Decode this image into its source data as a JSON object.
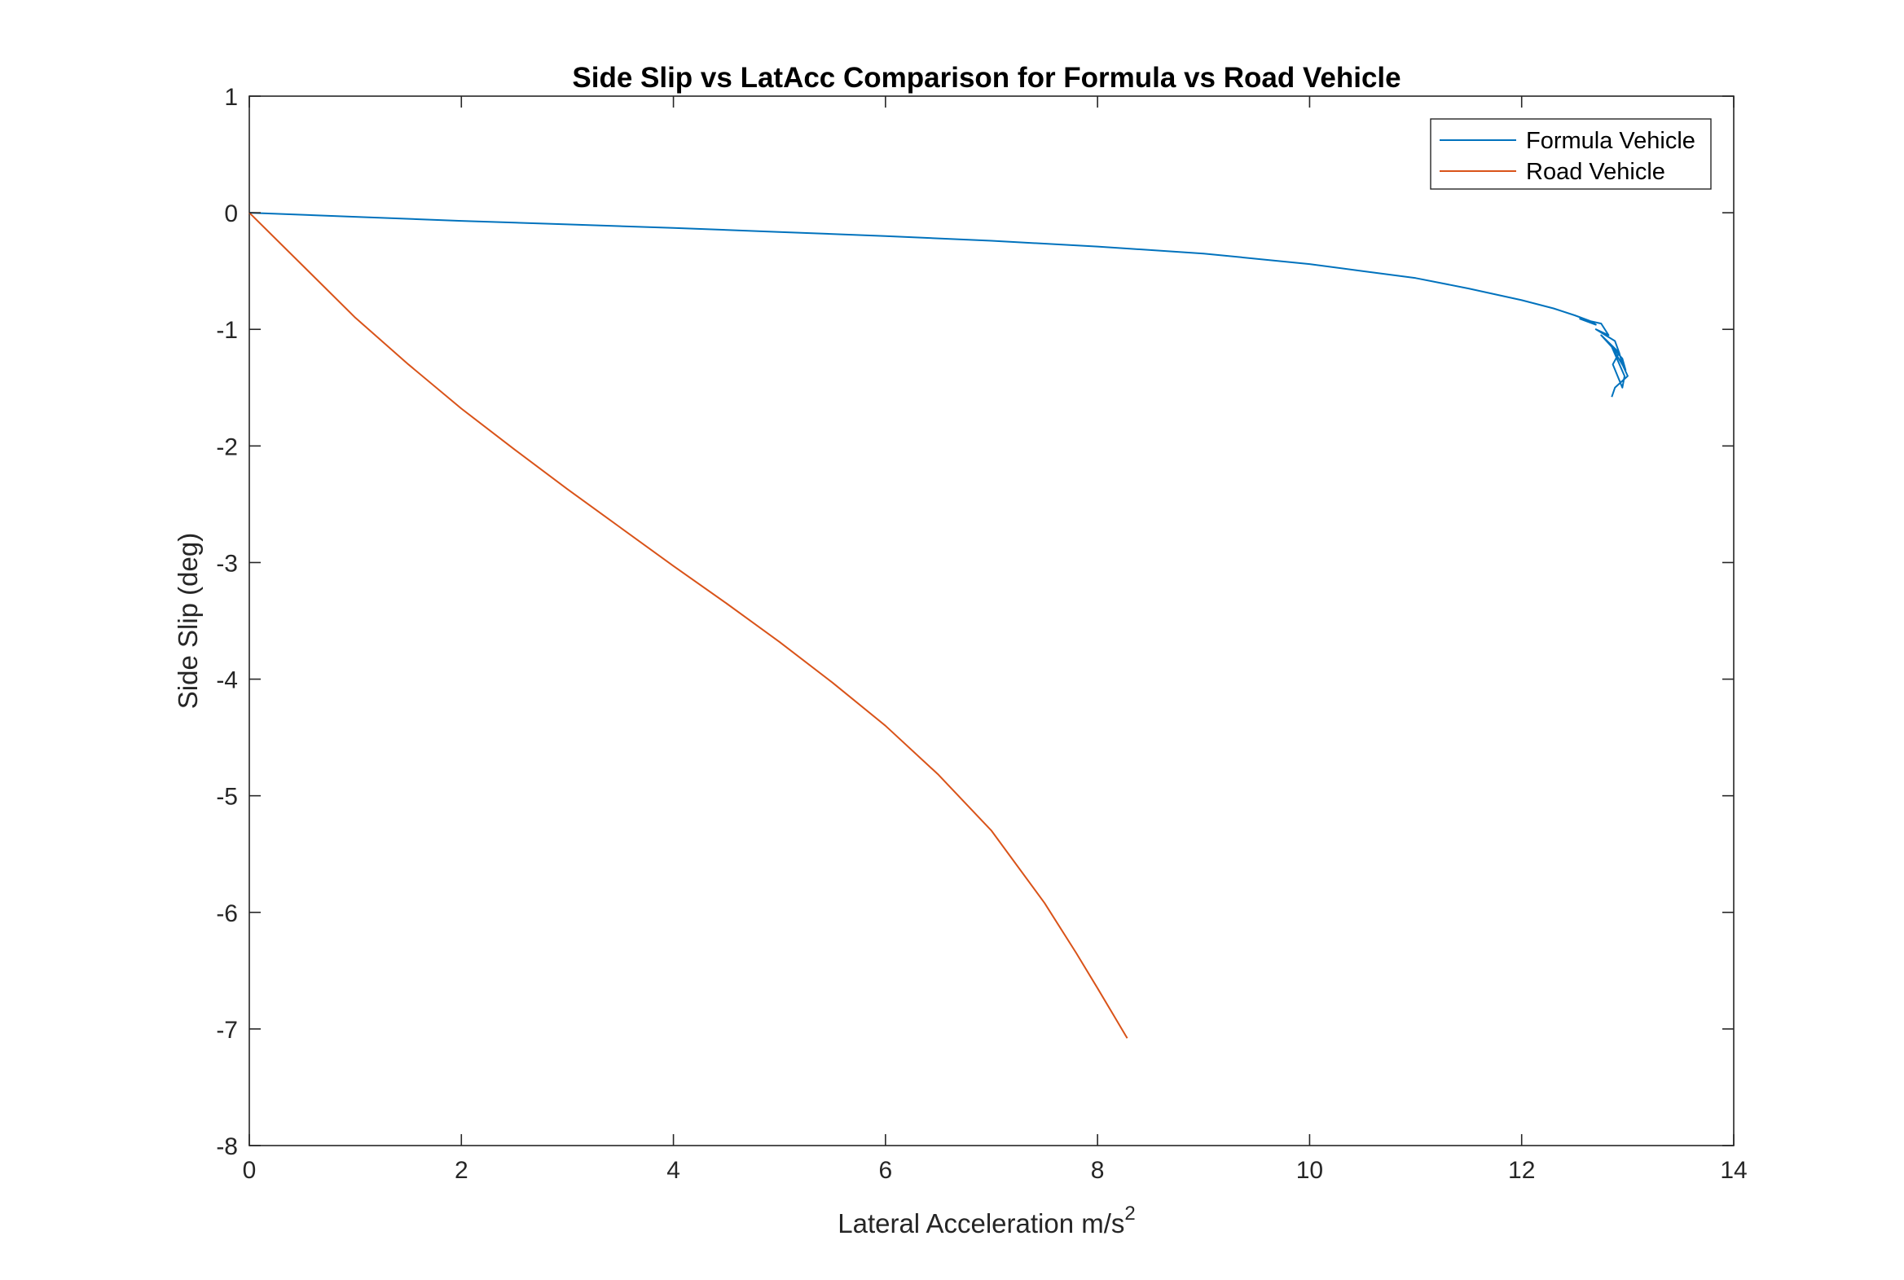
{
  "chart_data": {
    "type": "line",
    "title": "Side Slip vs LatAcc Comparison for Formula vs Road Vehicle",
    "xlabel": "Lateral Acceleration m/s",
    "xlabel_superscript": "2",
    "ylabel": "Side Slip (deg)",
    "xlim": [
      0,
      14
    ],
    "ylim": [
      -8,
      1
    ],
    "xticks": [
      "0",
      "2",
      "4",
      "6",
      "8",
      "10",
      "12",
      "14"
    ],
    "yticks": [
      "1",
      "0",
      "-1",
      "-2",
      "-3",
      "-4",
      "-5",
      "-6",
      "-7",
      "-8"
    ],
    "grid": false,
    "legend_position": "top-right",
    "series": [
      {
        "name": "Formula Vehicle",
        "color": "#0072BD",
        "x": [
          0,
          1,
          2,
          3,
          4,
          5,
          6,
          7,
          8,
          9,
          10,
          10.5,
          11,
          11.5,
          12,
          12.3,
          12.5,
          12.65,
          12.7,
          12.55,
          12.75,
          12.82,
          12.7,
          12.88,
          12.92,
          12.75,
          12.95,
          12.98,
          12.85,
          12.97,
          12.95,
          12.86,
          12.92,
          12.95,
          13.0,
          12.88,
          12.85
        ],
        "y": [
          0,
          -0.035,
          -0.07,
          -0.1,
          -0.13,
          -0.165,
          -0.2,
          -0.24,
          -0.29,
          -0.35,
          -0.44,
          -0.5,
          -0.56,
          -0.65,
          -0.75,
          -0.82,
          -0.88,
          -0.93,
          -0.96,
          -0.91,
          -0.95,
          -1.05,
          -1.0,
          -1.1,
          -1.2,
          -1.05,
          -1.25,
          -1.35,
          -1.15,
          -1.4,
          -1.5,
          -1.3,
          -1.2,
          -1.3,
          -1.4,
          -1.5,
          -1.58
        ]
      },
      {
        "name": "Road Vehicle",
        "color": "#D95319",
        "x": [
          0,
          0.5,
          1,
          1.5,
          2,
          2.5,
          3,
          3.5,
          4,
          4.5,
          5,
          5.5,
          6,
          6.5,
          7,
          7.5,
          7.8,
          8.0,
          8.15,
          8.28
        ],
        "y": [
          0,
          -0.45,
          -0.9,
          -1.3,
          -1.68,
          -2.03,
          -2.37,
          -2.7,
          -3.03,
          -3.35,
          -3.68,
          -4.03,
          -4.4,
          -4.82,
          -5.3,
          -5.92,
          -6.35,
          -6.65,
          -6.88,
          -7.08
        ]
      }
    ]
  }
}
